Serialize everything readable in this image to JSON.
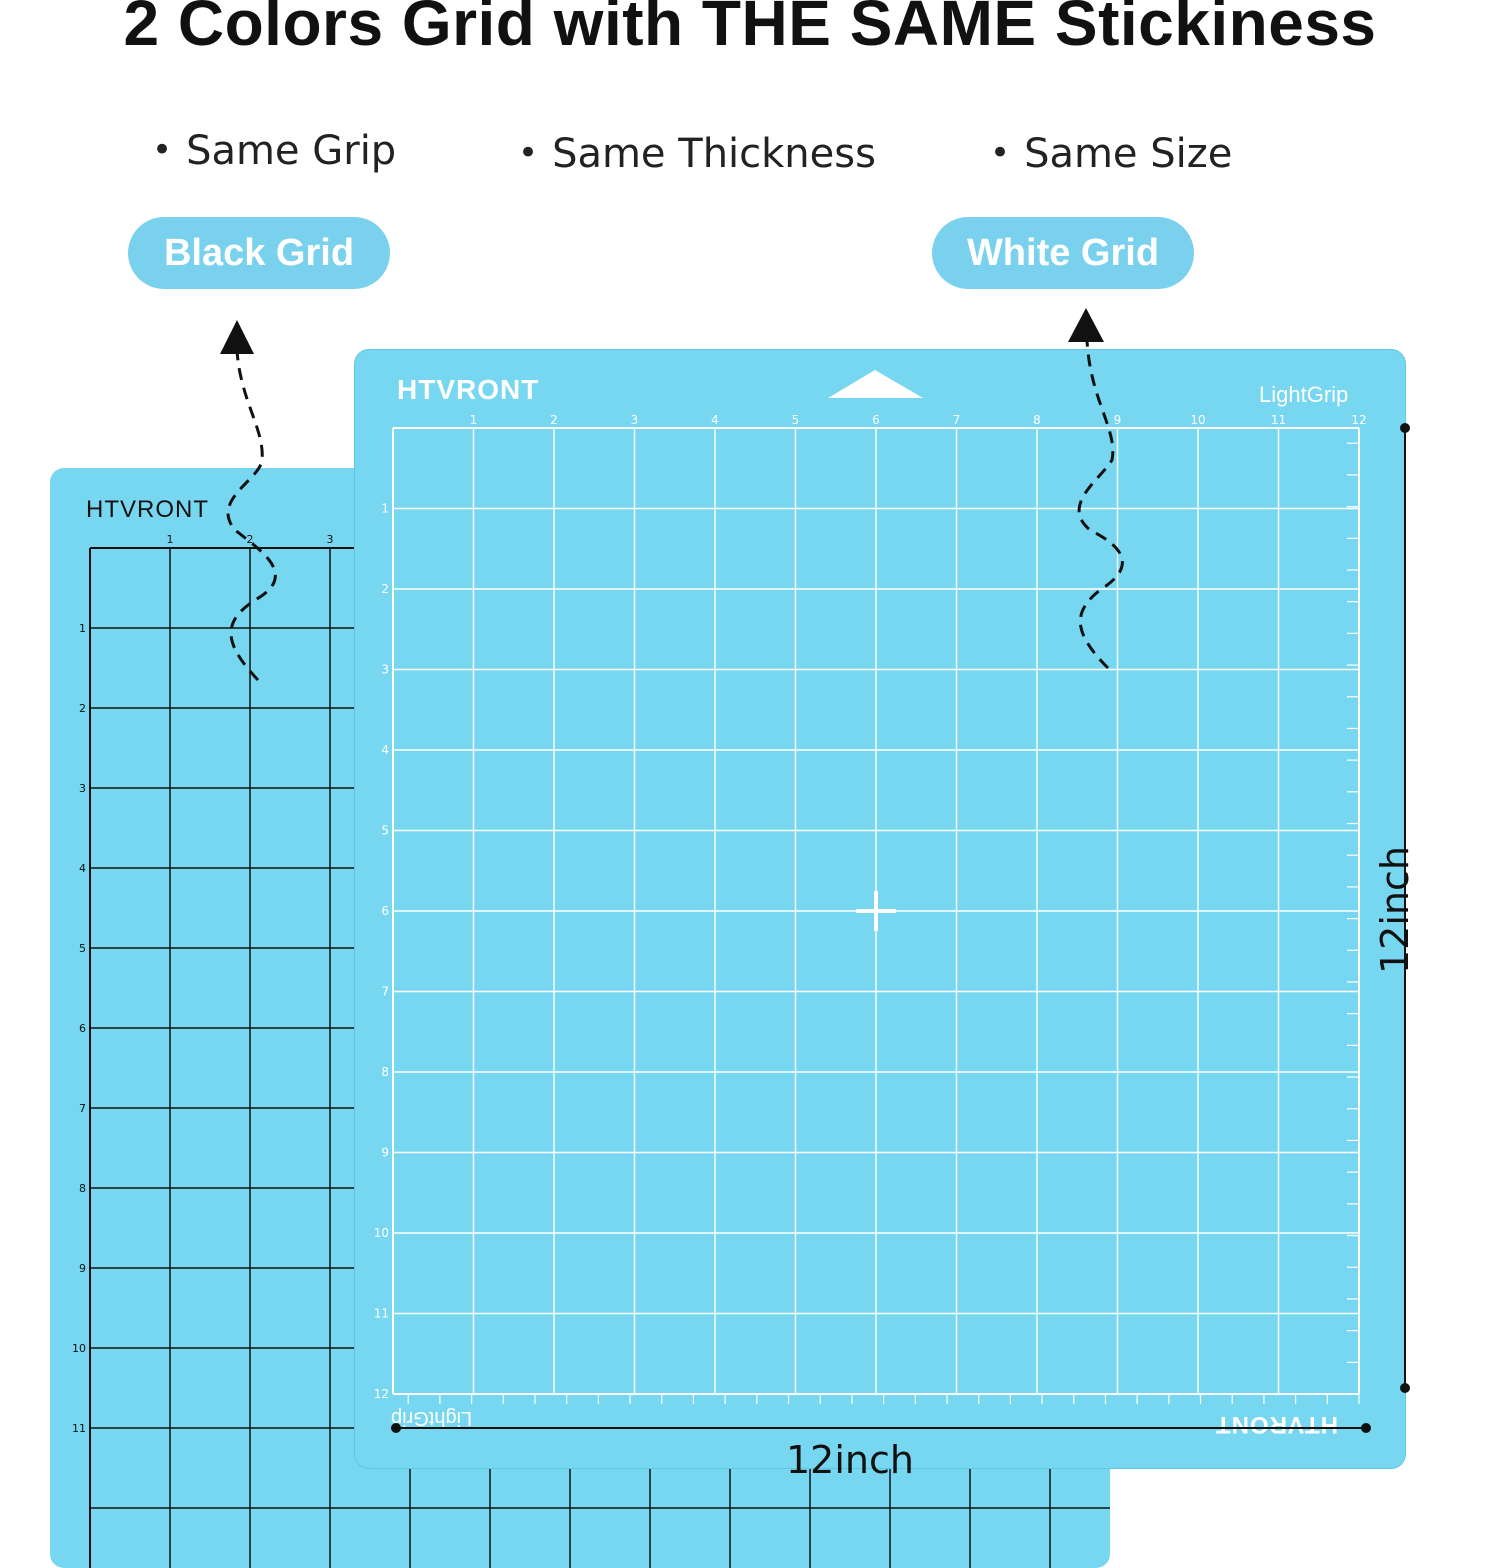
{
  "headline": "2 Colors Grid with THE SAME Stickiness",
  "features": [
    "Same Grip",
    "Same Thickness",
    "Same Size"
  ],
  "badges": {
    "black_grid": "Black Grid",
    "white_grid": "White Grid"
  },
  "mats": {
    "black": {
      "brand": "HTVRONT",
      "grid_color": "#111111",
      "color": "#78d7f0"
    },
    "white": {
      "brand": "HTVRONT",
      "grip_label": "LightGrip",
      "grid_color": "#ffffff",
      "color": "#78d7f0"
    }
  },
  "dimensions": {
    "width_label": "12inch",
    "height_label": "12inch"
  },
  "colors": {
    "badge": "#7ad1ee",
    "mat": "#78d7f0"
  }
}
